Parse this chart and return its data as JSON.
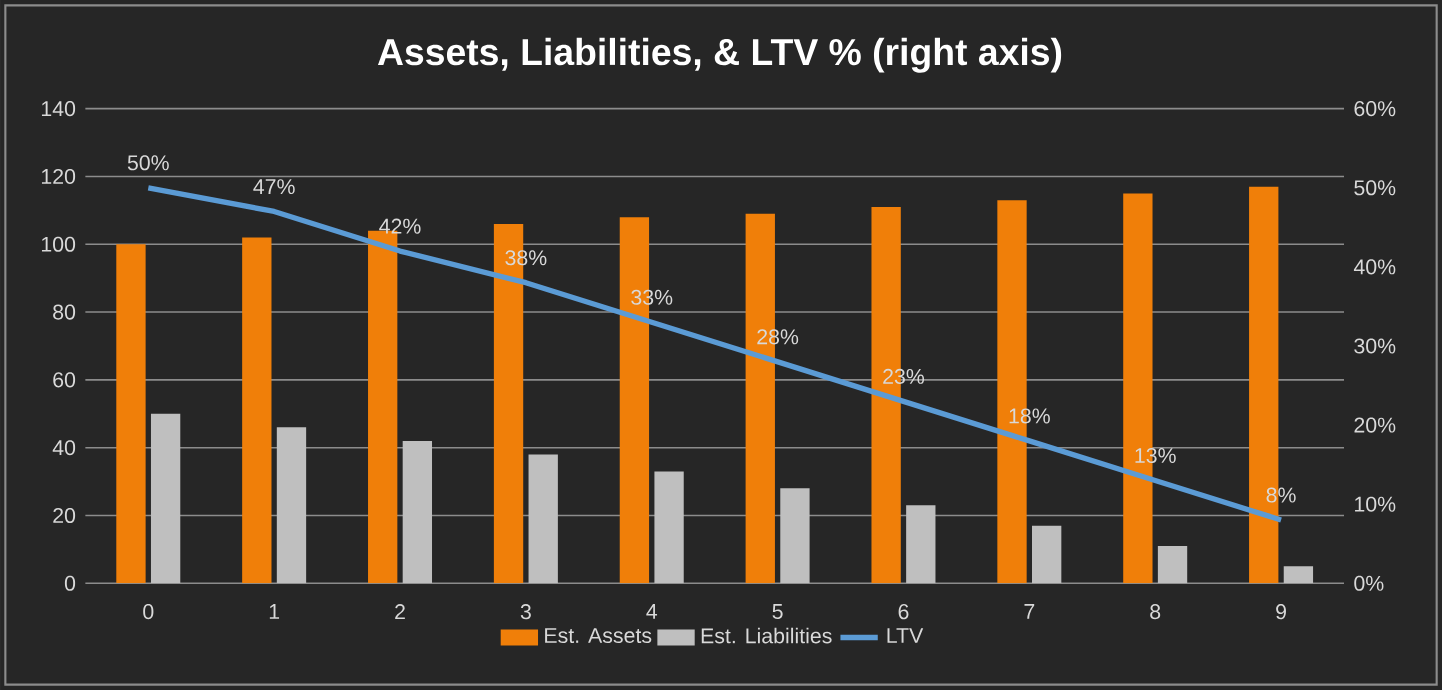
{
  "chart_data": {
    "type": "bar",
    "title": "Assets, Liabilities, & LTV % (right axis)",
    "categories": [
      "0",
      "1",
      "2",
      "3",
      "4",
      "5",
      "6",
      "7",
      "8",
      "9"
    ],
    "series": [
      {
        "name": "Est. Assets",
        "color": "#f07f09",
        "values": [
          100,
          102,
          104,
          106,
          108,
          109,
          111,
          113,
          115,
          117
        ]
      },
      {
        "name": "Est. Liabilities",
        "color": "#bfbfbf",
        "values": [
          50,
          46,
          42,
          38,
          33,
          28,
          23,
          17,
          11,
          5
        ]
      },
      {
        "name": "LTV",
        "type": "line",
        "axis": "y2",
        "color": "#5b9bd5",
        "marker": "none",
        "line_style": "solid",
        "values": [
          50,
          47,
          42,
          38,
          33,
          28,
          23,
          18,
          13,
          8
        ],
        "value_labels": [
          "50%",
          "47%",
          "42%",
          "38%",
          "33%",
          "28%",
          "23%",
          "18%",
          "13%",
          "8%"
        ]
      }
    ],
    "ylim": [
      0,
      140
    ],
    "yticks": [
      0,
      20,
      40,
      60,
      80,
      100,
      120,
      140
    ],
    "y2lim": [
      0,
      60
    ],
    "y2ticks": [
      {
        "value": 0,
        "label": "0%"
      },
      {
        "value": 10,
        "label": "10%"
      },
      {
        "value": 20,
        "label": "20%"
      },
      {
        "value": 30,
        "label": "30%"
      },
      {
        "value": 40,
        "label": "40%"
      },
      {
        "value": 50,
        "label": "50%"
      },
      {
        "value": 60,
        "label": "60%"
      }
    ],
    "grid": "y",
    "legend": "bottom"
  }
}
